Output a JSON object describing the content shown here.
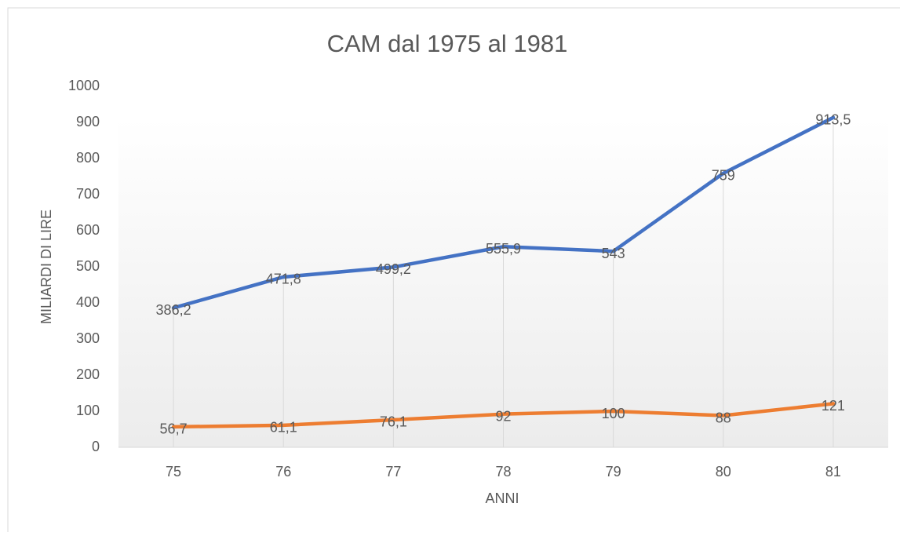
{
  "chart_data": {
    "type": "line",
    "title": "CAM dal 1975 al 1981",
    "x_label": "ANNI",
    "y_label": "MILIARDI DI LIRE",
    "categories": [
      "75",
      "76",
      "77",
      "78",
      "79",
      "80",
      "81"
    ],
    "series": [
      {
        "color": "#4472c4",
        "values": [
          386.2,
          471.8,
          499.2,
          555.9,
          543,
          759,
          913.5
        ],
        "value_labels": [
          "386,2",
          "471,8",
          "499,2",
          "555,9",
          "543",
          "759",
          "913,5"
        ]
      },
      {
        "color": "#ed7d31",
        "values": [
          56.7,
          61.1,
          76.1,
          92,
          100,
          88,
          121
        ],
        "value_labels": [
          "56,7",
          "61,1",
          "76,1",
          "92",
          "100",
          "88",
          "121"
        ]
      }
    ],
    "ylim": [
      0,
      1000
    ],
    "yticks": [
      0,
      100,
      200,
      300,
      400,
      500,
      600,
      700,
      800,
      900,
      1000
    ],
    "drop_lines": true
  }
}
